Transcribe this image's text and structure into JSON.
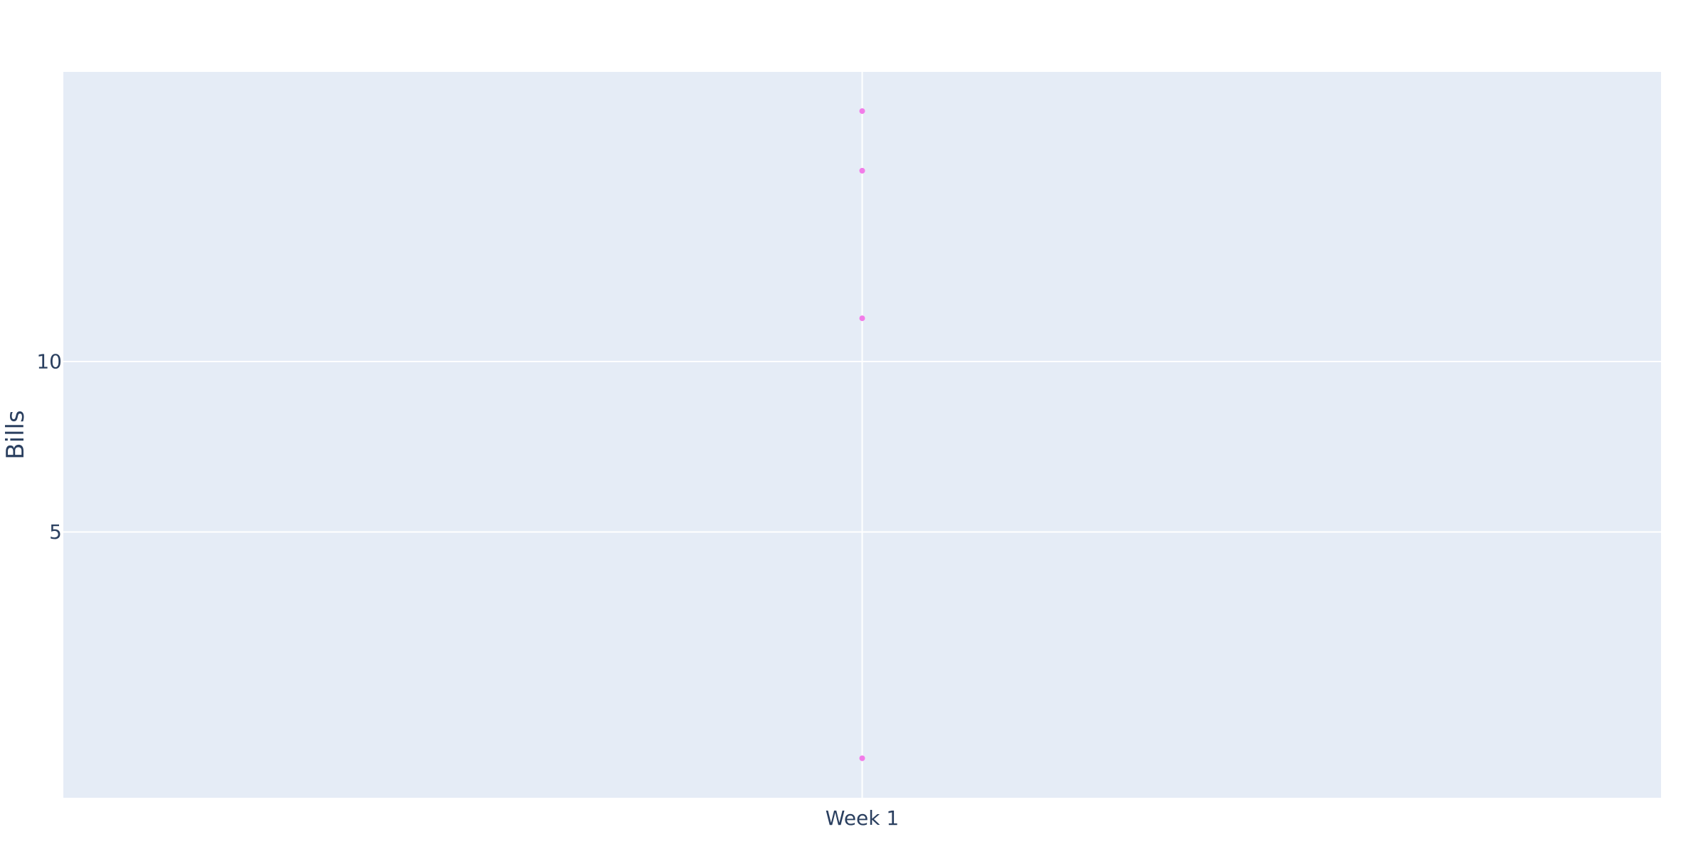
{
  "chart_data": {
    "type": "scatter",
    "title": "",
    "xlabel": "",
    "ylabel": "Bills",
    "x_categories": [
      "Week 1"
    ],
    "x_tick_labels": [
      "Week 1"
    ],
    "y_ticks": [
      5,
      10
    ],
    "ylim": [
      -2.8,
      18.5
    ],
    "grid": true,
    "legend": "none",
    "series": [
      {
        "x": [
          "Week 1",
          "Week 1",
          "Week 1",
          "Week 1"
        ],
        "y": [
          17.35,
          15.6,
          11.27,
          -1.64
        ]
      }
    ]
  },
  "colors": {
    "plot_background": "#e5ecf6",
    "gridline": "#ffffff",
    "marker": "#f27ce8",
    "text": "#2a3f5f"
  }
}
